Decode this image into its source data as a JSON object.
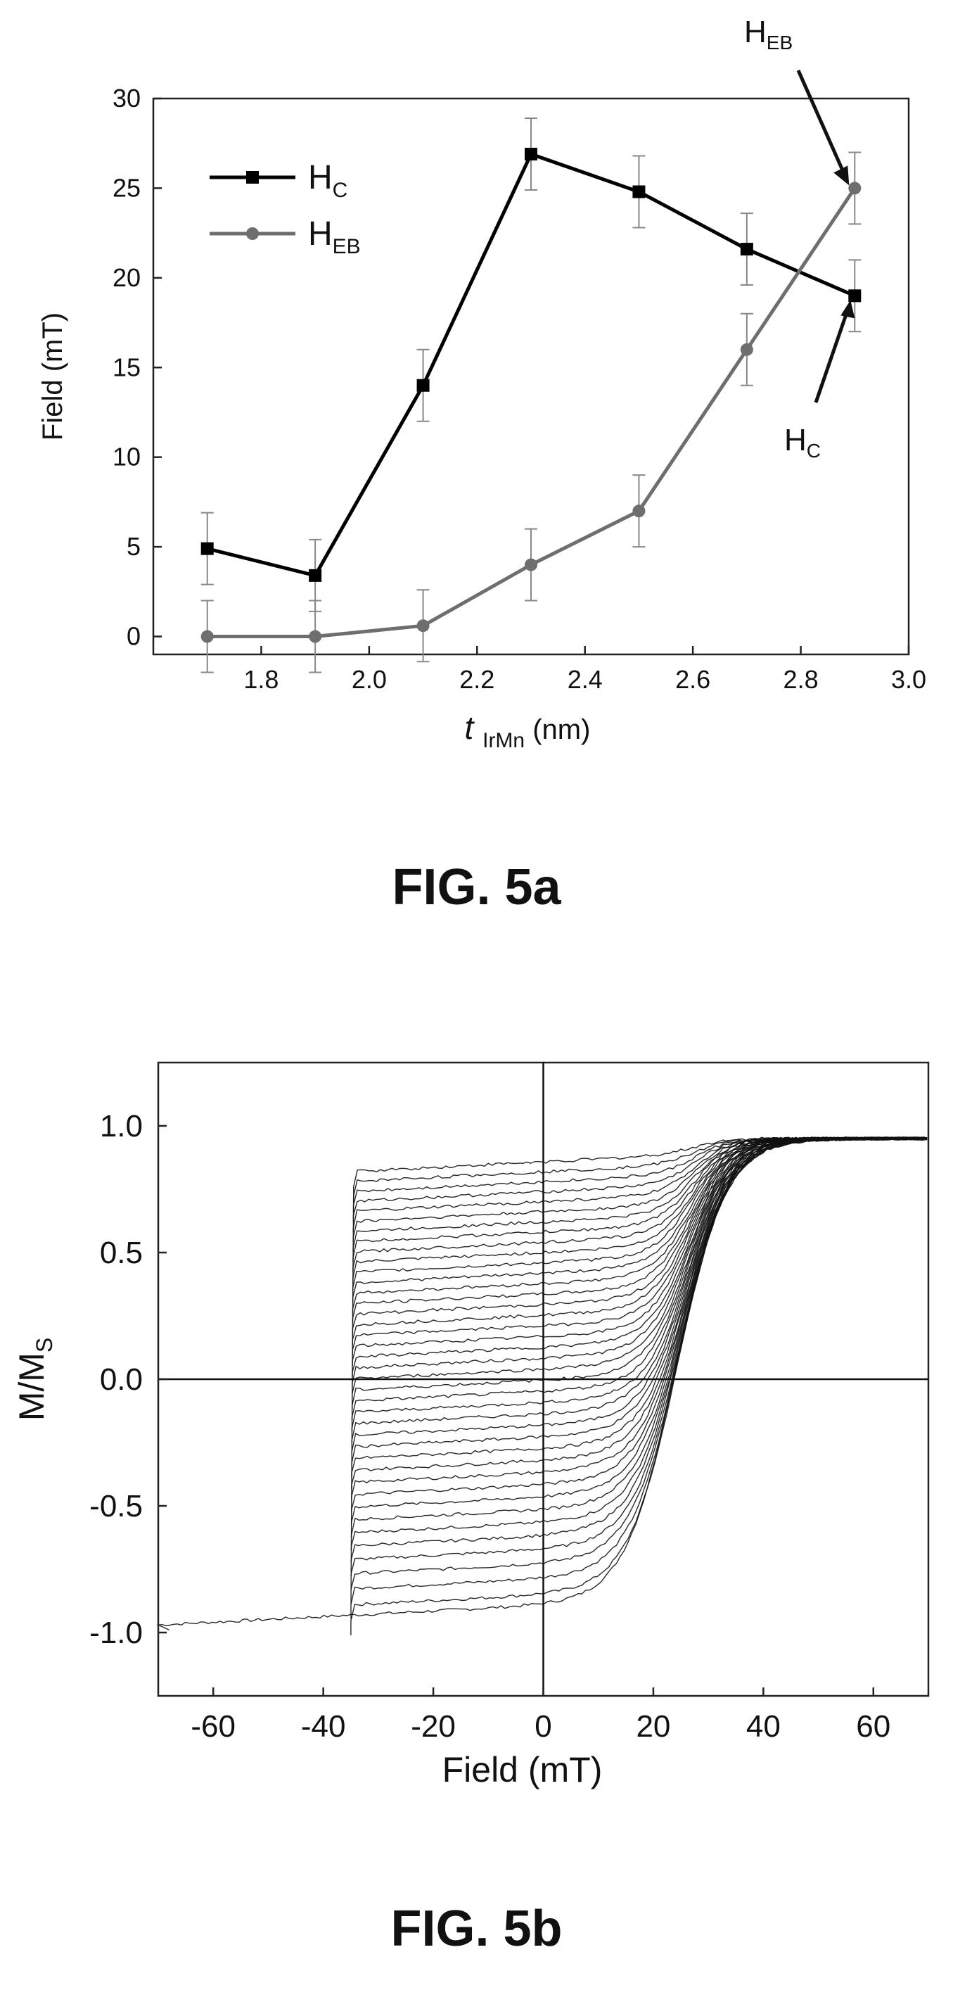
{
  "chart_data": [
    {
      "type": "line",
      "title": "",
      "xlabel": "t IrMn (nm)",
      "xlabel_parts": {
        "t": "t",
        "sub": "IrMn",
        "unit": "(nm)"
      },
      "ylabel": "Field (mT)",
      "xlim": [
        1.6,
        3.0
      ],
      "ylim": [
        -1,
        30
      ],
      "xticks": [
        1.8,
        2.0,
        2.2,
        2.4,
        2.6,
        2.8,
        3.0
      ],
      "yticks": [
        0,
        5,
        10,
        15,
        20,
        25,
        30
      ],
      "grid": false,
      "legend_position": "top-left",
      "x": [
        1.7,
        1.9,
        2.1,
        2.3,
        2.5,
        2.7,
        2.9
      ],
      "series": [
        {
          "name": "H_C",
          "label_main": "H",
          "label_sub": "C",
          "color": "#000000",
          "marker": "square",
          "values": [
            4.9,
            3.4,
            14.0,
            26.9,
            24.8,
            21.6,
            19.0
          ],
          "errors": [
            2.0,
            2.0,
            2.0,
            2.0,
            2.0,
            2.0,
            2.0
          ]
        },
        {
          "name": "H_EB",
          "label_main": "H",
          "label_sub": "EB",
          "color": "#6e6e6e",
          "marker": "circle",
          "values": [
            0.0,
            0.0,
            0.6,
            4.0,
            7.0,
            16.0,
            25.0
          ],
          "errors": [
            2.0,
            2.0,
            2.0,
            2.0,
            2.0,
            2.0,
            2.0
          ]
        }
      ],
      "annotations": [
        {
          "main": "H",
          "sub": "EB",
          "points_to": "H_EB at 2.9"
        },
        {
          "main": "H",
          "sub": "C",
          "points_to": "H_C at 2.9"
        }
      ]
    },
    {
      "type": "line",
      "title": "",
      "xlabel": "Field (mT)",
      "ylabel": "M/M_S",
      "ylabel_parts": {
        "main": "M/M",
        "sub": "S"
      },
      "xlim": [
        -70,
        70
      ],
      "ylim": [
        -1.25,
        1.25
      ],
      "xticks": [
        -60,
        -40,
        -20,
        0,
        20,
        40,
        60
      ],
      "yticks": [
        -1.0,
        -0.5,
        0.0,
        0.5,
        1.0
      ],
      "grid": false,
      "reference_lines": {
        "x": 0,
        "y": 0
      },
      "family": {
        "description_count": 40,
        "start_field_min": -70,
        "switch_field_first": -35,
        "switch_field_last": 27,
        "start_level_first": -0.97,
        "start_level_last": 0.82,
        "saturation": 0.95
      }
    }
  ],
  "captions": {
    "a": "FIG. 5a",
    "b": "FIG. 5b"
  }
}
